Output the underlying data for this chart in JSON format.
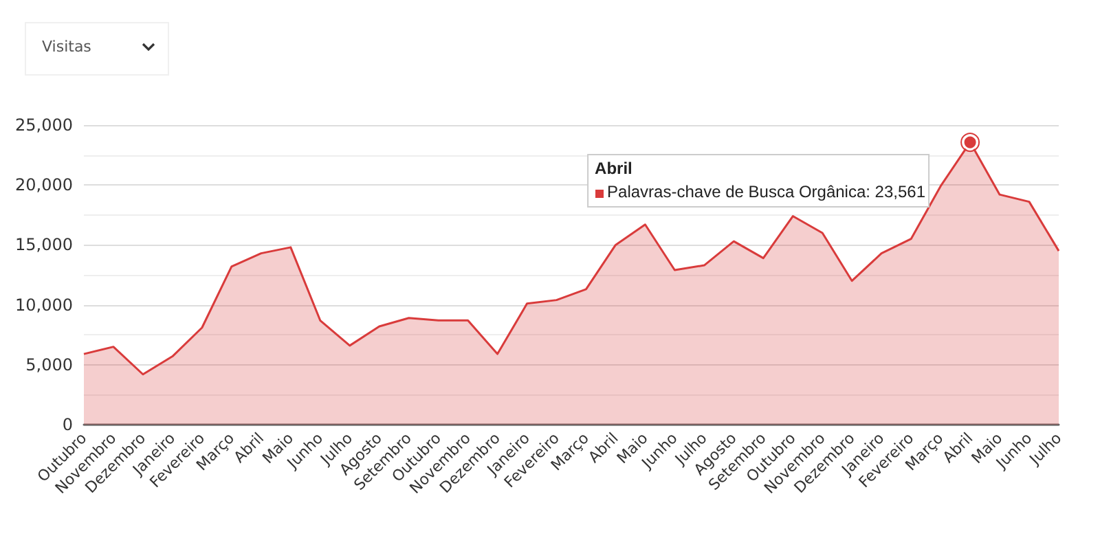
{
  "chart_data": {
    "type": "area",
    "annotations": [
      "Visitas",
      "Abril",
      "Palavras-chave de Busca Orgânica: 23,561"
    ],
    "categories": [
      "Outubro",
      "Novembro",
      "Dezembro",
      "Janeiro",
      "Fevereiro",
      "Março",
      "Abril",
      "Maio",
      "Junho",
      "Julho",
      "Agosto",
      "Setembro",
      "Outubro",
      "Novembro",
      "Dezembro",
      "Janeiro",
      "Fevereiro",
      "Março",
      "Abril",
      "Maio",
      "Junho",
      "Julho",
      "Agosto",
      "Setembro",
      "Outubro",
      "Novembro",
      "Dezembro",
      "Janeiro",
      "Fevereiro",
      "Março",
      "Abril",
      "Maio",
      "Junho",
      "Julho"
    ],
    "series": [
      {
        "color": "#d93b3b",
        "values": [
          5900,
          6500,
          4200,
          5700,
          8100,
          13200,
          14300,
          14800,
          8700,
          6600,
          8200,
          8900,
          8700,
          8700,
          5900,
          10100,
          10400,
          11300,
          15000,
          16700,
          12900,
          13300,
          15300,
          13900,
          17400,
          16000,
          12000,
          14300,
          15500,
          19900,
          23561,
          19200,
          18600,
          14500
        ]
      }
    ],
    "ylim": [
      0,
      25000
    ],
    "yticks": [
      0,
      {
        "value": 5000,
        "label": "5,000"
      },
      {
        "value": 10000,
        "label": "10,000"
      },
      {
        "value": 15000,
        "label": "15,000"
      },
      {
        "value": 20000,
        "label": "20,000"
      },
      {
        "value": 25000,
        "label": "25,000"
      }
    ],
    "grid": "y",
    "marker": "none",
    "line_style": "solid"
  }
}
